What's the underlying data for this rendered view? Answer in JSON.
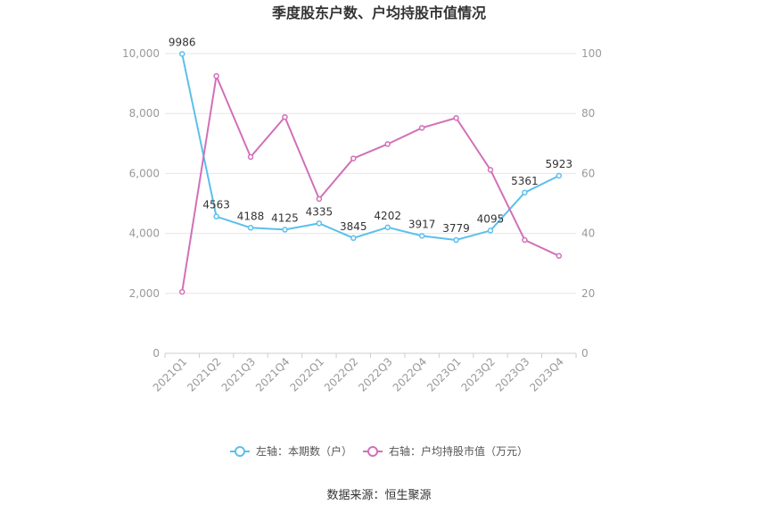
{
  "chart_data": {
    "type": "line",
    "title": "季度股东户数、户均持股市值情况",
    "categories": [
      "2021Q1",
      "2021Q2",
      "2021Q3",
      "2021Q4",
      "2022Q1",
      "2022Q2",
      "2022Q3",
      "2022Q4",
      "2023Q1",
      "2023Q2",
      "2023Q3",
      "2023Q4"
    ],
    "left_axis": {
      "ylim": [
        0,
        10000
      ],
      "ticks": [
        "0",
        "2,000",
        "4,000",
        "6,000",
        "8,000",
        "10,000"
      ]
    },
    "right_axis": {
      "ylim": [
        0,
        100
      ],
      "ticks": [
        "0",
        "20",
        "40",
        "60",
        "80",
        "100"
      ]
    },
    "series": [
      {
        "name": "左轴：本期数（户）",
        "axis": "left",
        "color": "#5bc0eb",
        "values": [
          9986,
          4563,
          4188,
          4125,
          4335,
          3845,
          4202,
          3917,
          3779,
          4095,
          5361,
          5923
        ],
        "labels": [
          "9986",
          "4563",
          "4188",
          "4125",
          "4335",
          "3845",
          "4202",
          "3917",
          "3779",
          "4095",
          "5361",
          "5923"
        ]
      },
      {
        "name": "右轴：户均持股市值（万元）",
        "axis": "right",
        "color": "#d170b8",
        "values": [
          20.5,
          92.5,
          65.5,
          78.8,
          51.5,
          65,
          69.8,
          75.2,
          78.5,
          61.2,
          37.8,
          32.5
        ]
      }
    ],
    "grid": true,
    "legend_position": "bottom"
  },
  "source_text": "数据来源：恒生聚源"
}
